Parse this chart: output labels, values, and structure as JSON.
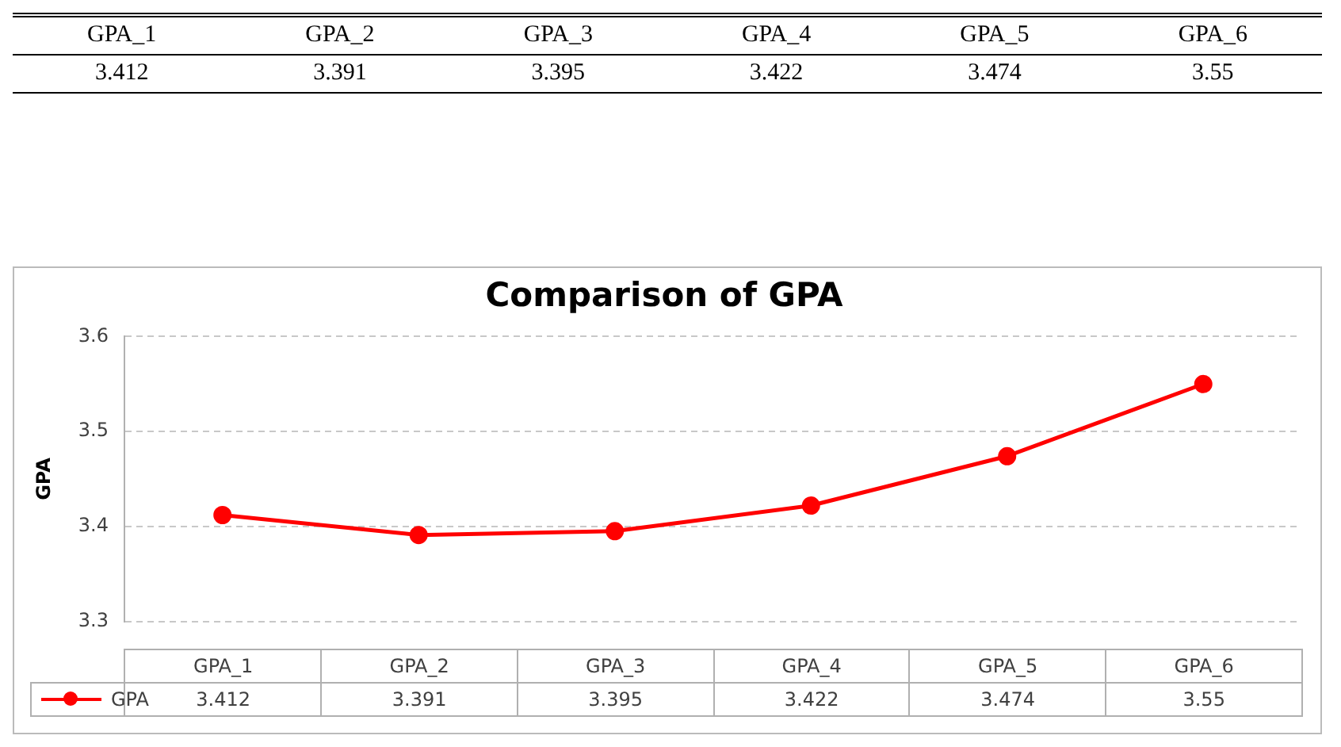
{
  "chart_data": {
    "type": "line",
    "title": "Comparison of GPA",
    "ylabel": "GPA",
    "categories": [
      "GPA_1",
      "GPA_2",
      "GPA_3",
      "GPA_4",
      "GPA_5",
      "GPA_6"
    ],
    "series": [
      {
        "name": "GPA",
        "color": "#ff0000",
        "values": [
          3.412,
          3.391,
          3.395,
          3.422,
          3.474,
          3.55
        ],
        "value_labels": [
          "3.412",
          "3.391",
          "3.395",
          "3.422",
          "3.474",
          "3.55"
        ]
      }
    ],
    "ylim": [
      3.3,
      3.6
    ],
    "yticks": [
      3.3,
      3.4,
      3.5,
      3.6
    ],
    "grid": "y",
    "legend": "bottom",
    "marker": "circle",
    "line_style": "solid"
  }
}
